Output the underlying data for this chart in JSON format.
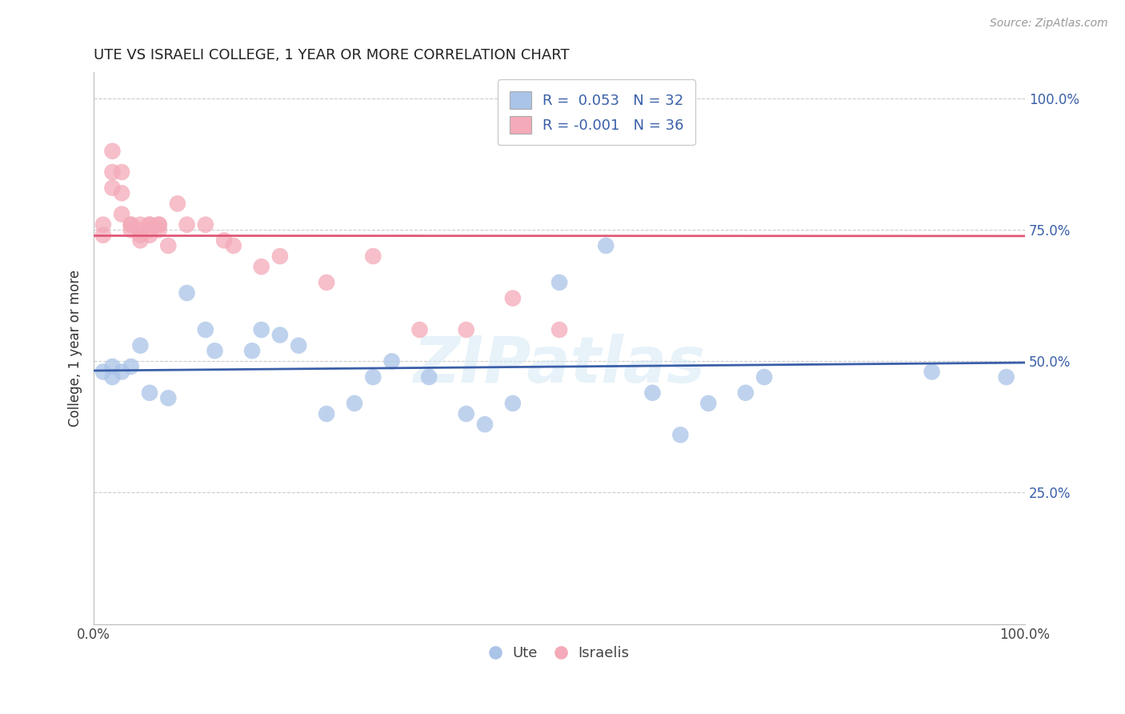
{
  "title": "UTE VS ISRAELI COLLEGE, 1 YEAR OR MORE CORRELATION CHART",
  "source_text": "Source: ZipAtlas.com",
  "ylabel": "College, 1 year or more",
  "xlim": [
    0.0,
    1.0
  ],
  "ylim": [
    0.0,
    1.05
  ],
  "ytick_positions": [
    0.25,
    0.5,
    0.75,
    1.0
  ],
  "ytick_labels": [
    "25.0%",
    "50.0%",
    "75.0%",
    "100.0%"
  ],
  "legend_label1": "Ute",
  "legend_label2": "Israelis",
  "R1": 0.053,
  "N1": 32,
  "R2": -0.001,
  "N2": 36,
  "blue_color": "#aac4e8",
  "pink_color": "#f4aab8",
  "line_blue": "#3a5fa8",
  "line_pink": "#e05878",
  "watermark_color": "#d4e8f5",
  "ute_x": [
    0.01,
    0.02,
    0.02,
    0.03,
    0.04,
    0.05,
    0.06,
    0.08,
    0.1,
    0.12,
    0.13,
    0.17,
    0.18,
    0.2,
    0.22,
    0.25,
    0.28,
    0.3,
    0.32,
    0.36,
    0.4,
    0.42,
    0.45,
    0.5,
    0.55,
    0.6,
    0.63,
    0.66,
    0.7,
    0.72,
    0.9,
    0.98
  ],
  "ute_y": [
    0.48,
    0.49,
    0.47,
    0.48,
    0.49,
    0.53,
    0.44,
    0.43,
    0.63,
    0.56,
    0.52,
    0.52,
    0.56,
    0.55,
    0.53,
    0.4,
    0.42,
    0.47,
    0.5,
    0.47,
    0.4,
    0.38,
    0.42,
    0.65,
    0.72,
    0.44,
    0.36,
    0.42,
    0.44,
    0.47,
    0.48,
    0.47
  ],
  "israeli_x": [
    0.01,
    0.01,
    0.02,
    0.02,
    0.02,
    0.03,
    0.03,
    0.03,
    0.04,
    0.04,
    0.04,
    0.05,
    0.05,
    0.05,
    0.05,
    0.06,
    0.06,
    0.06,
    0.06,
    0.07,
    0.07,
    0.07,
    0.08,
    0.09,
    0.1,
    0.12,
    0.14,
    0.15,
    0.18,
    0.2,
    0.25,
    0.3,
    0.35,
    0.4,
    0.45,
    0.5
  ],
  "israeli_y": [
    0.76,
    0.74,
    0.9,
    0.86,
    0.83,
    0.86,
    0.82,
    0.78,
    0.76,
    0.76,
    0.75,
    0.76,
    0.75,
    0.74,
    0.73,
    0.76,
    0.76,
    0.75,
    0.74,
    0.76,
    0.76,
    0.75,
    0.72,
    0.8,
    0.76,
    0.76,
    0.73,
    0.72,
    0.68,
    0.7,
    0.65,
    0.7,
    0.56,
    0.56,
    0.62,
    0.56
  ]
}
